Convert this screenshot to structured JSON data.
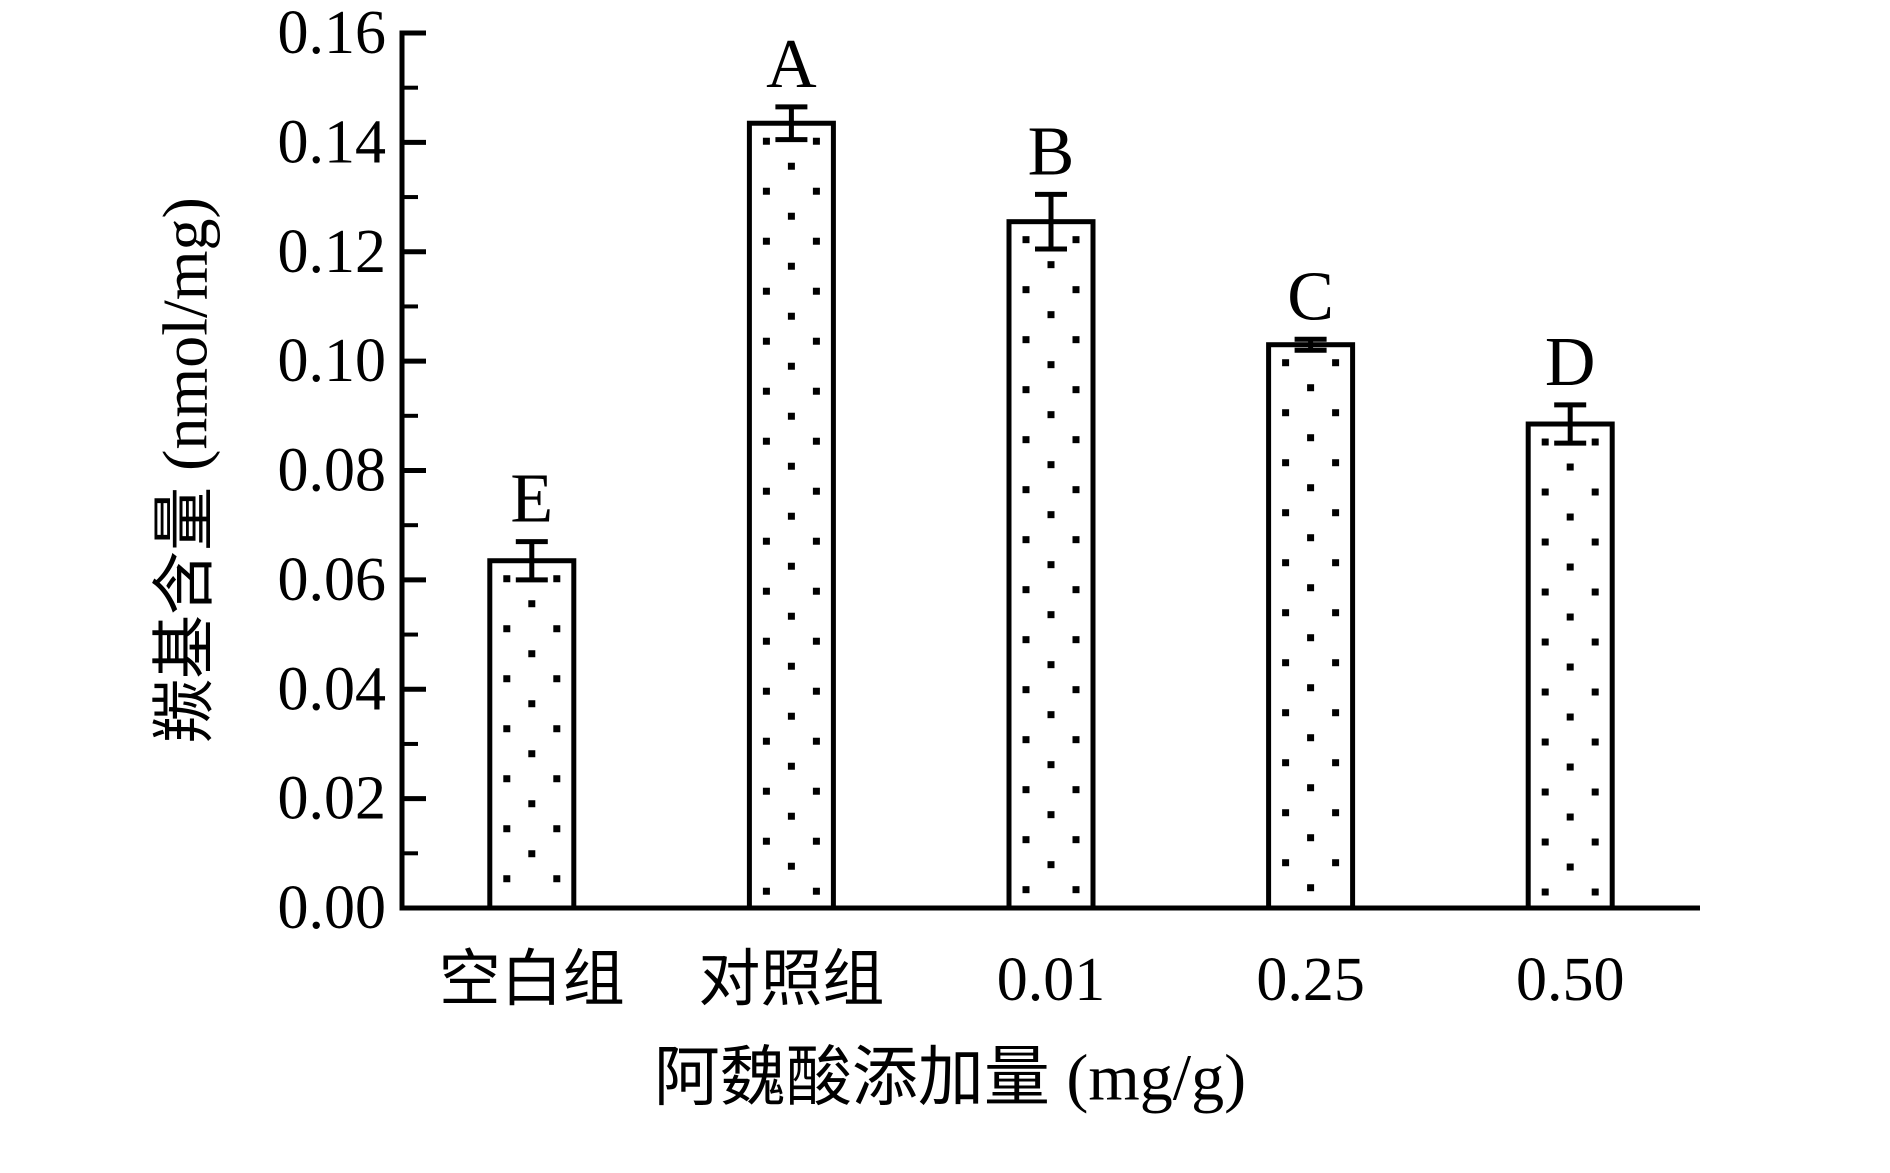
{
  "chart_data": {
    "type": "bar",
    "title": "",
    "categories": [
      "空白组",
      "对照组",
      "0.01",
      "0.25",
      "0.50"
    ],
    "values": [
      0.0635,
      0.1435,
      0.1255,
      0.103,
      0.0885
    ],
    "errors": [
      0.0035,
      0.003,
      0.005,
      0.001,
      0.0035
    ],
    "significance_letters": [
      "E",
      "A",
      "B",
      "C",
      "D"
    ],
    "xlabel": "阿魏酸添加量 (mg/g)",
    "ylabel": "羰基含量 (nmol/mg)",
    "ylim": [
      0.0,
      0.16
    ],
    "y_major_step": 0.02,
    "y_minor_step": 0.01,
    "y_tick_labels": [
      "0.00",
      "0.02",
      "0.04",
      "0.06",
      "0.08",
      "0.10",
      "0.12",
      "0.14",
      "0.16"
    ],
    "grid": false,
    "legend_position": "none",
    "bar_fill_color": "#ffffff",
    "bar_pattern": "staggered-square-dots",
    "ink_color": "#000000",
    "background_color": "#ffffff"
  }
}
